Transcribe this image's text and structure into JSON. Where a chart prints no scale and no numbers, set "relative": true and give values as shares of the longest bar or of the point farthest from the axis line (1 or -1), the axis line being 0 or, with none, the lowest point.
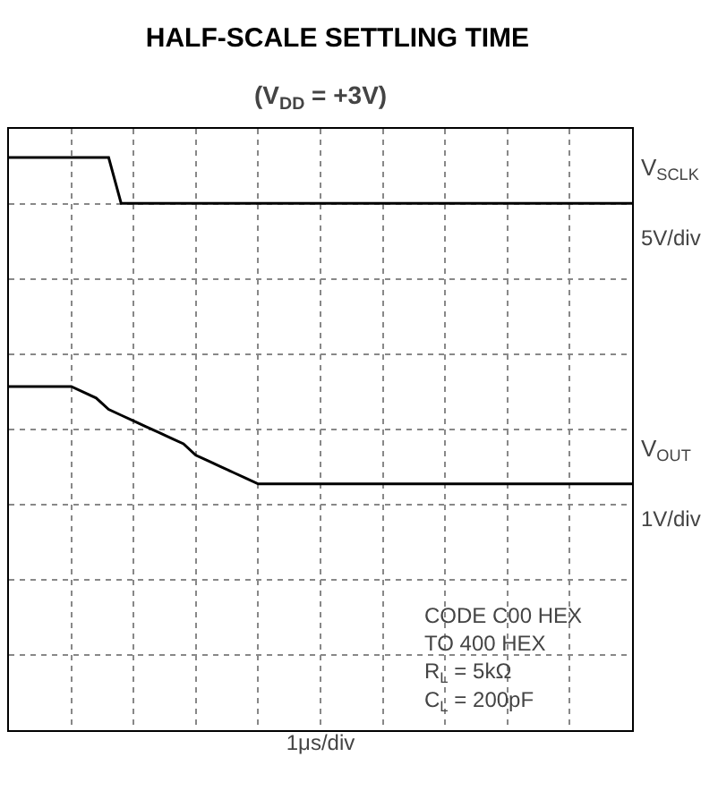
{
  "chart_data": {
    "type": "line",
    "title": "HALF-SCALE SETTLING TIME",
    "subtitle": "(V$_{DD}$ = +3V)",
    "xlabel": "1μs/div",
    "relative": true,
    "grid": true,
    "legend": false,
    "marker": "none",
    "line_style": "solid",
    "categories": [
      null,
      null,
      null,
      null,
      null,
      null,
      null,
      null,
      null,
      null,
      null,
      null,
      null,
      null,
      null,
      null,
      null,
      null,
      null,
      null,
      null,
      null,
      null,
      null,
      null,
      null,
      null,
      null,
      null,
      null,
      null,
      null,
      null,
      null,
      null,
      null,
      null,
      null,
      null,
      null,
      null,
      null,
      null,
      null,
      null,
      null,
      null,
      null,
      null,
      null,
      null
    ],
    "series": [
      {
        "name": "V$_{SCLK}$",
        "color": "#000000",
        "values": [
          1,
          1,
          1,
          1,
          1,
          1,
          1,
          1,
          1,
          0.92,
          0.92,
          0.92,
          0.92,
          0.92,
          0.92,
          0.92,
          0.92,
          0.92,
          0.92,
          0.92,
          0.92,
          0.92,
          0.92,
          0.92,
          0.92,
          0.92,
          0.92,
          0.92,
          0.92,
          0.92,
          0.92,
          0.92,
          0.92,
          0.92,
          0.92,
          0.92,
          0.92,
          0.92,
          0.92,
          0.92,
          0.92,
          0.92,
          0.92,
          0.92,
          0.92,
          0.92,
          0.92,
          0.92,
          0.92,
          0.92,
          0.92
        ]
      },
      {
        "name": "V$_{OUT}$",
        "color": "#000000",
        "values": [
          0.6,
          0.6,
          0.6,
          0.6,
          0.6,
          0.6,
          0.59,
          0.58,
          0.56,
          0.55,
          0.54,
          0.53,
          0.52,
          0.51,
          0.5,
          0.48,
          0.47,
          0.46,
          0.45,
          0.44,
          0.43,
          0.43,
          0.43,
          0.43,
          0.43,
          0.43,
          0.43,
          0.43,
          0.43,
          0.43,
          0.43,
          0.43,
          0.43,
          0.43,
          0.43,
          0.43,
          0.43,
          0.43,
          0.43,
          0.43,
          0.43,
          0.43,
          0.43,
          0.43,
          0.43,
          0.43,
          0.43,
          0.43,
          0.43,
          0.43,
          0.43
        ]
      }
    ],
    "annotations": [
      "5V/div",
      "1V/div",
      "CODE C00 HEX\nTO 400 HEX\nR$_{L}$ = 5kΩ\nC$_{L}$ = 200pF"
    ]
  }
}
